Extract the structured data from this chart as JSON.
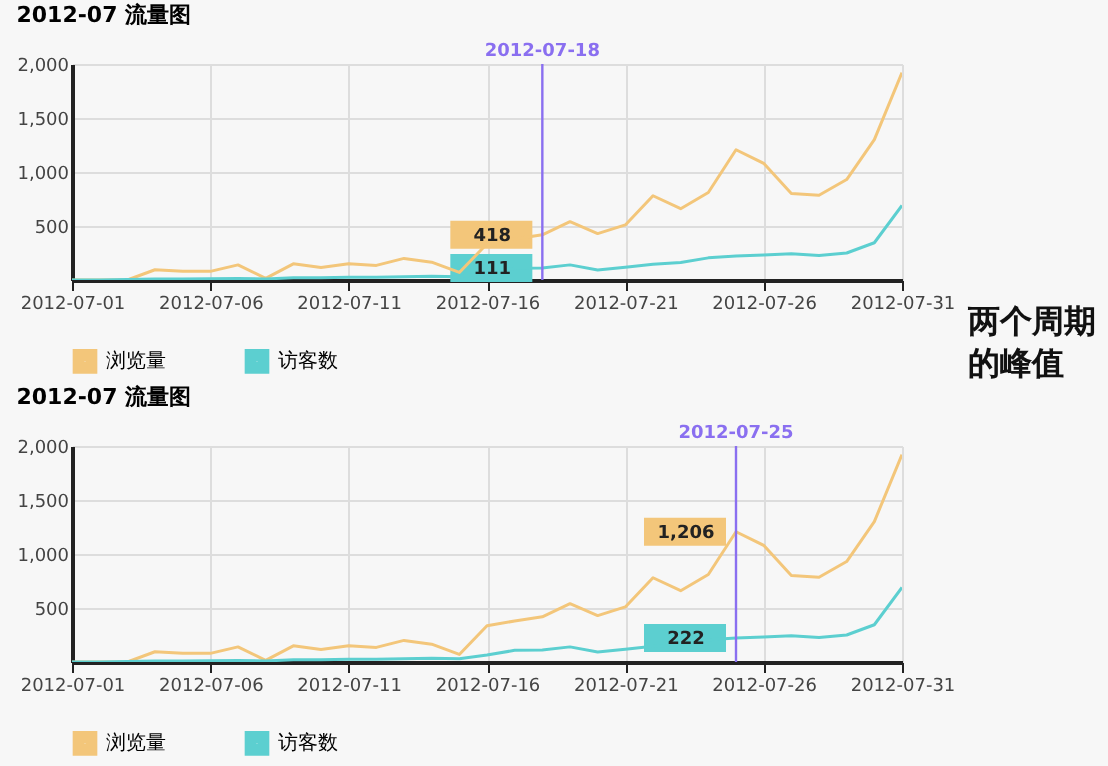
{
  "chart_data": [
    {
      "type": "line",
      "title": "2012-07 流量图",
      "x": [
        "2012-07-01",
        "2012-07-02",
        "2012-07-03",
        "2012-07-04",
        "2012-07-05",
        "2012-07-06",
        "2012-07-07",
        "2012-07-08",
        "2012-07-09",
        "2012-07-10",
        "2012-07-11",
        "2012-07-12",
        "2012-07-13",
        "2012-07-14",
        "2012-07-15",
        "2012-07-16",
        "2012-07-17",
        "2012-07-18",
        "2012-07-19",
        "2012-07-20",
        "2012-07-21",
        "2012-07-22",
        "2012-07-23",
        "2012-07-24",
        "2012-07-25",
        "2012-07-26",
        "2012-07-27",
        "2012-07-28",
        "2012-07-29",
        "2012-07-30",
        "2012-07-31"
      ],
      "series": [
        {
          "name": "浏览量",
          "color": "#f3c67a",
          "values": [
            0,
            0,
            0,
            95,
            80,
            80,
            140,
            15,
            150,
            115,
            150,
            135,
            200,
            165,
            70,
            335,
            380,
            418,
            540,
            430,
            510,
            780,
            660,
            810,
            1206,
            1080,
            800,
            785,
            930,
            1300,
            1920
          ]
        },
        {
          "name": "访客数",
          "color": "#5ccfd0",
          "values": [
            0,
            0,
            5,
            10,
            10,
            12,
            15,
            10,
            20,
            20,
            25,
            25,
            30,
            35,
            30,
            65,
            108,
            111,
            140,
            92,
            119,
            146,
            162,
            205,
            222,
            232,
            243,
            227,
            250,
            345,
            690
          ]
        }
      ],
      "xlim": [
        "2012-07-01",
        "2012-07-31"
      ],
      "xticks": [
        "2012-07-01",
        "2012-07-06",
        "2012-07-11",
        "2012-07-16",
        "2012-07-21",
        "2012-07-26",
        "2012-07-31"
      ],
      "ylim": [
        0,
        2000
      ],
      "yticks": [
        {
          "value": 500,
          "label": "500"
        },
        {
          "value": 1000,
          "label": "1,000"
        },
        {
          "value": 1500,
          "label": "1,500"
        },
        {
          "value": 2000,
          "label": "2,000"
        }
      ],
      "grid": true,
      "legend": "bottom",
      "marker": "none",
      "ref_lines": [
        {
          "axis": "x",
          "value": "2012-07-18",
          "label": "2012-07-18",
          "color": "#8a6ff0"
        }
      ],
      "annotations": [
        {
          "text": "418",
          "x": "2012-07-18",
          "y": 418
        },
        {
          "text": "111",
          "x": "2012-07-18",
          "y": 111
        },
        "两个周期的峰值"
      ]
    },
    {
      "type": "line",
      "title": "2012-07 流量图",
      "x": [
        "2012-07-01",
        "2012-07-02",
        "2012-07-03",
        "2012-07-04",
        "2012-07-05",
        "2012-07-06",
        "2012-07-07",
        "2012-07-08",
        "2012-07-09",
        "2012-07-10",
        "2012-07-11",
        "2012-07-12",
        "2012-07-13",
        "2012-07-14",
        "2012-07-15",
        "2012-07-16",
        "2012-07-17",
        "2012-07-18",
        "2012-07-19",
        "2012-07-20",
        "2012-07-21",
        "2012-07-22",
        "2012-07-23",
        "2012-07-24",
        "2012-07-25",
        "2012-07-26",
        "2012-07-27",
        "2012-07-28",
        "2012-07-29",
        "2012-07-30",
        "2012-07-31"
      ],
      "series": [
        {
          "name": "浏览量",
          "color": "#f3c67a",
          "values": [
            0,
            0,
            0,
            95,
            80,
            80,
            140,
            15,
            150,
            115,
            150,
            135,
            200,
            165,
            70,
            335,
            380,
            418,
            540,
            430,
            510,
            780,
            660,
            810,
            1206,
            1080,
            800,
            785,
            930,
            1300,
            1920
          ]
        },
        {
          "name": "访客数",
          "color": "#5ccfd0",
          "values": [
            0,
            0,
            5,
            10,
            10,
            12,
            15,
            10,
            20,
            20,
            25,
            25,
            30,
            35,
            30,
            65,
            108,
            111,
            140,
            92,
            119,
            146,
            162,
            205,
            222,
            232,
            243,
            227,
            250,
            345,
            690
          ]
        }
      ],
      "xlim": [
        "2012-07-01",
        "2012-07-31"
      ],
      "xticks": [
        "2012-07-01",
        "2012-07-06",
        "2012-07-11",
        "2012-07-16",
        "2012-07-21",
        "2012-07-26",
        "2012-07-31"
      ],
      "ylim": [
        0,
        2000
      ],
      "yticks": [
        {
          "value": 500,
          "label": "500"
        },
        {
          "value": 1000,
          "label": "1,000"
        },
        {
          "value": 1500,
          "label": "1,500"
        },
        {
          "value": 2000,
          "label": "2,000"
        }
      ],
      "grid": true,
      "legend": "bottom",
      "marker": "none",
      "ref_lines": [
        {
          "axis": "x",
          "value": "2012-07-25",
          "label": "2012-07-25",
          "color": "#8a6ff0"
        }
      ],
      "annotations": [
        {
          "text": "1,206",
          "x": "2012-07-25",
          "y": 1206
        },
        {
          "text": "222",
          "x": "2012-07-25",
          "y": 222
        }
      ]
    }
  ]
}
